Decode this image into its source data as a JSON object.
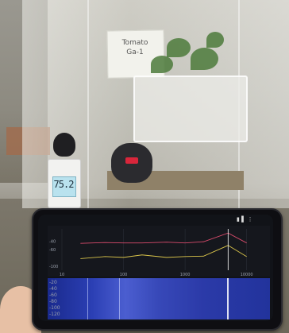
{
  "meter": {
    "reading": "75.2"
  },
  "sign": {
    "line1": "Tomato",
    "line2": "Ga-1"
  },
  "chart_data": {
    "type": "line",
    "x": [
      20,
      50,
      100,
      200,
      500,
      1000,
      2000,
      5000,
      10000
    ],
    "ticks_x": [
      "10",
      "100",
      "1000",
      "10000"
    ],
    "ticks_y": [
      "-40",
      "-60",
      "-100"
    ],
    "series": [
      {
        "values": [
          -45,
          -43,
          -44,
          -44,
          -42,
          -44,
          -41,
          -20,
          -44
        ]
      },
      {
        "values": [
          -82,
          -77,
          -79,
          -73,
          -79,
          -77,
          -76,
          -50,
          -77
        ]
      }
    ]
  },
  "spectro_ticks": [
    "-20",
    "-40",
    "-60",
    "-80",
    "-100",
    "-120"
  ],
  "phone": {
    "status": "▮ ▌ ⋮"
  }
}
